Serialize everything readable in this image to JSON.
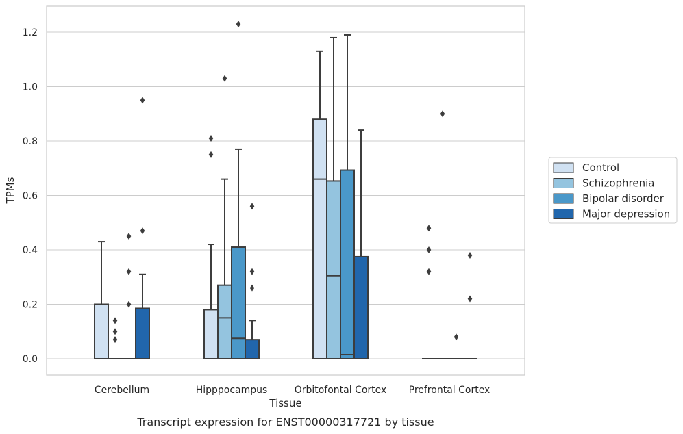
{
  "chart_data": {
    "type": "box",
    "title": "",
    "caption": "Transcript expression for ENST00000317721 by tissue",
    "xlabel": "Tissue",
    "ylabel": "TPMs",
    "ylim": [
      -0.06,
      1.29
    ],
    "yticks": [
      0.0,
      0.2,
      0.4,
      0.6,
      0.8,
      1.0,
      1.2
    ],
    "ytick_labels": [
      "0.0",
      "0.2",
      "0.4",
      "0.6",
      "0.8",
      "1.0",
      "1.2"
    ],
    "grid": "horizontal",
    "legend_position": "right",
    "categories": [
      "Cerebellum",
      "Hipppocampus",
      "Orbitofontal Cortex",
      "Prefrontal Cortex"
    ],
    "series": [
      {
        "name": "Control",
        "color": "#d0e1f2",
        "boxes": [
          {
            "q1": 0.0,
            "median": 0.0,
            "q3": 0.2,
            "wlo": 0.0,
            "whi": 0.43,
            "outliers": []
          },
          {
            "q1": 0.0,
            "median": 0.0,
            "q3": 0.18,
            "wlo": 0.0,
            "whi": 0.42,
            "outliers": [
              0.75,
              0.81
            ]
          },
          {
            "q1": 0.0,
            "median": 0.66,
            "q3": 0.88,
            "wlo": 0.0,
            "whi": 1.13,
            "outliers": []
          },
          {
            "q1": 0.0,
            "median": 0.0,
            "q3": 0.0,
            "wlo": 0.0,
            "whi": 0.0,
            "outliers": [
              0.32,
              0.4,
              0.48
            ]
          }
        ]
      },
      {
        "name": "Schizophrenia",
        "color": "#94c4df",
        "boxes": [
          {
            "q1": 0.0,
            "median": 0.0,
            "q3": 0.0,
            "wlo": 0.0,
            "whi": 0.0,
            "outliers": [
              0.07,
              0.1,
              0.14
            ]
          },
          {
            "q1": 0.0,
            "median": 0.15,
            "q3": 0.27,
            "wlo": 0.0,
            "whi": 0.66,
            "outliers": [
              1.03
            ]
          },
          {
            "q1": 0.0,
            "median": 0.305,
            "q3": 0.653,
            "wlo": 0.0,
            "whi": 1.18,
            "outliers": []
          },
          {
            "q1": 0.0,
            "median": 0.0,
            "q3": 0.0,
            "wlo": 0.0,
            "whi": 0.0,
            "outliers": [
              0.9
            ]
          }
        ]
      },
      {
        "name": "Bipolar disorder",
        "color": "#4a98c9",
        "boxes": [
          {
            "q1": 0.0,
            "median": 0.0,
            "q3": 0.0,
            "wlo": 0.0,
            "whi": 0.0,
            "outliers": [
              0.2,
              0.32,
              0.45
            ]
          },
          {
            "q1": 0.0,
            "median": 0.075,
            "q3": 0.41,
            "wlo": 0.0,
            "whi": 0.77,
            "outliers": [
              1.23
            ]
          },
          {
            "q1": 0.0,
            "median": 0.015,
            "q3": 0.693,
            "wlo": 0.0,
            "whi": 1.19,
            "outliers": []
          },
          {
            "q1": 0.0,
            "median": 0.0,
            "q3": 0.0,
            "wlo": 0.0,
            "whi": 0.0,
            "outliers": [
              0.08
            ]
          }
        ]
      },
      {
        "name": "Major depression",
        "color": "#2166ac",
        "boxes": [
          {
            "q1": 0.0,
            "median": 0.0,
            "q3": 0.185,
            "wlo": 0.0,
            "whi": 0.31,
            "outliers": [
              0.47,
              0.95
            ]
          },
          {
            "q1": 0.0,
            "median": 0.0,
            "q3": 0.07,
            "wlo": 0.0,
            "whi": 0.14,
            "outliers": [
              0.26,
              0.32,
              0.56
            ]
          },
          {
            "q1": 0.0,
            "median": 0.0,
            "q3": 0.375,
            "wlo": 0.0,
            "whi": 0.84,
            "outliers": []
          },
          {
            "q1": 0.0,
            "median": 0.0,
            "q3": 0.0,
            "wlo": 0.0,
            "whi": 0.0,
            "outliers": [
              0.22,
              0.38
            ]
          }
        ]
      }
    ]
  }
}
